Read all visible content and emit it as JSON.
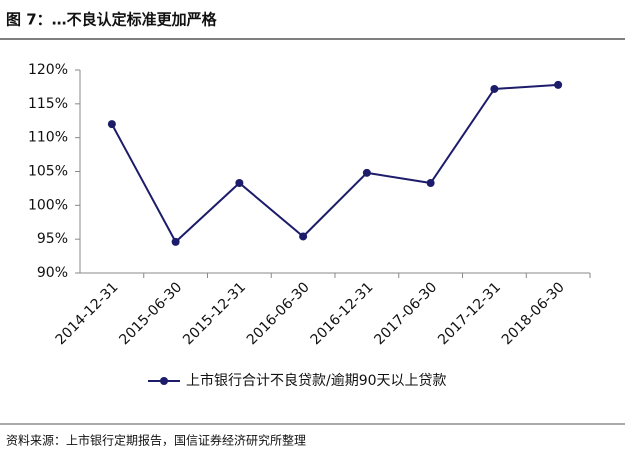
{
  "chart_data": {
    "type": "line",
    "title": "图 7：…不良认定标准更加严格",
    "categories": [
      "2014-12-31",
      "2015-06-30",
      "2015-12-31",
      "2016-06-30",
      "2016-12-31",
      "2017-06-30",
      "2017-12-31",
      "2018-06-30"
    ],
    "series": [
      {
        "name": "上市银行合计不良贷款/逾期90天以上贷款",
        "color": "#1c1c6b",
        "values": [
          112,
          94.6,
          103.3,
          95.4,
          104.8,
          103.3,
          117.2,
          117.8
        ]
      }
    ],
    "ylim": [
      90,
      120
    ],
    "yticks": [
      {
        "value": 90,
        "label": "90%"
      },
      {
        "value": 95,
        "label": "95%"
      },
      {
        "value": 100,
        "label": "100%"
      },
      {
        "value": 105,
        "label": "105%"
      },
      {
        "value": 110,
        "label": "110%"
      },
      {
        "value": 115,
        "label": "115%"
      },
      {
        "value": 120,
        "label": "120%"
      }
    ],
    "legend": "bottom",
    "source": "资料来源：上市银行定期报告，国信证券经济研究所整理"
  }
}
